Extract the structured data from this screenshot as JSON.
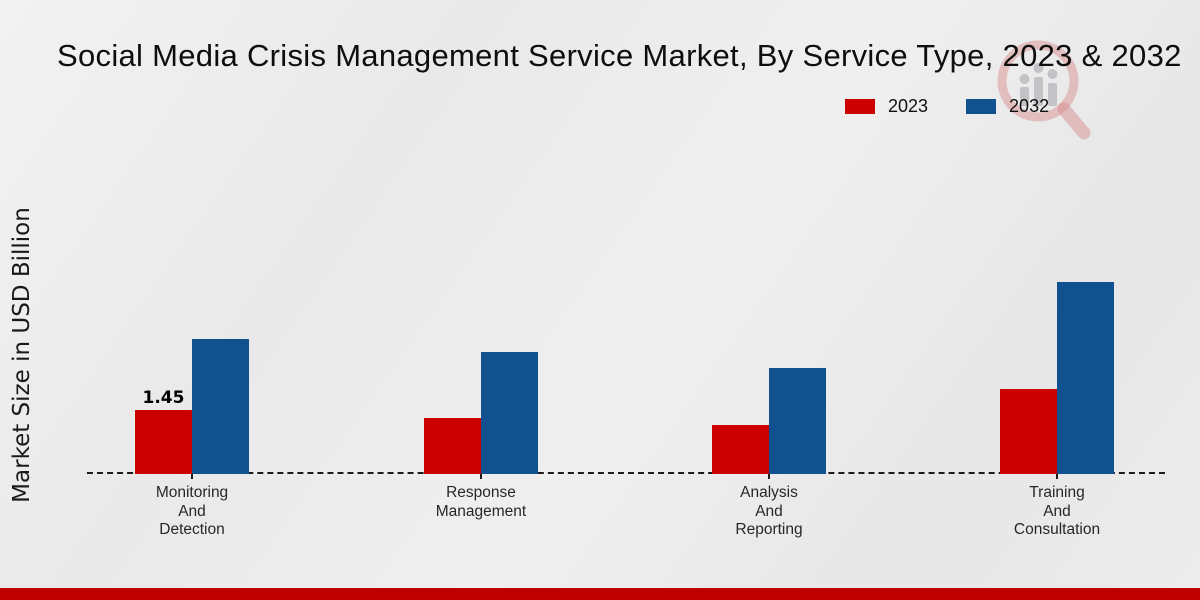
{
  "header": {
    "title": "Social Media Crisis Management Service Market, By Service Type, 2023 & 2032"
  },
  "legend": {
    "items": [
      {
        "label": "2023",
        "color": "#cc0000"
      },
      {
        "label": "2032",
        "color": "#11518f"
      }
    ]
  },
  "axes": {
    "y_label": "Market Size in USD Billion"
  },
  "chart_data": {
    "type": "bar",
    "title": "Social Media Crisis Management Service Market, By Service Type, 2023 & 2032",
    "ylabel": "Market Size in USD Billion",
    "unit": "USD Billion",
    "categories": [
      "Monitoring And Detection",
      "Response Management",
      "Analysis And Reporting",
      "Training And Consultation"
    ],
    "category_label_lines": [
      [
        "Monitoring",
        "And",
        "Detection"
      ],
      [
        "Response",
        "Management"
      ],
      [
        "Analysis",
        "And",
        "Reporting"
      ],
      [
        "Training",
        "And",
        "Consultation"
      ]
    ],
    "series": [
      {
        "name": "2023",
        "color": "#cc0000",
        "values": [
          1.45,
          1.27,
          1.11,
          1.92
        ]
      },
      {
        "name": "2032",
        "color": "#11518f",
        "values": [
          3.06,
          2.76,
          2.4,
          4.35
        ]
      }
    ],
    "data_labels": [
      {
        "series": "2023",
        "category_index": 0,
        "text": "1.45"
      }
    ],
    "ylim": [
      0,
      5
    ],
    "grid": false,
    "x_baseline_style": "dashed",
    "legend_position": "top-right"
  },
  "watermark": {
    "name": "magnifier-bar-chart-logo"
  },
  "footer": {
    "accent_color": "#c00000"
  }
}
